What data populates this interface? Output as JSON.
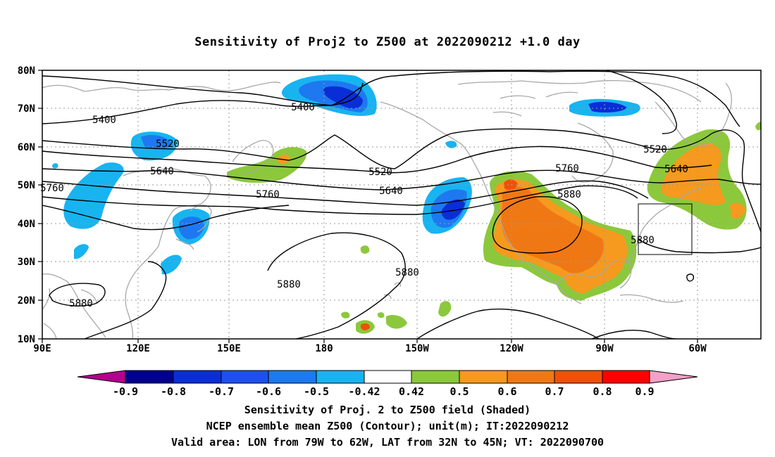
{
  "title": "Sensitivity of Proj2 to Z500 at 2022090212 +1.0 day",
  "map": {
    "lat_ticks": [
      "80N",
      "70N",
      "60N",
      "50N",
      "40N",
      "30N",
      "20N",
      "10N"
    ],
    "lon_ticks": [
      "90E",
      "120E",
      "150E",
      "180",
      "150W",
      "120W",
      "90W",
      "60W"
    ],
    "contour_labels": [
      "5400",
      "5400",
      "5520",
      "5520",
      "5520",
      "5640",
      "5640",
      "5640",
      "5760",
      "5760",
      "5760",
      "5880",
      "5880",
      "5880",
      "5880",
      "5880"
    ],
    "colors": {
      "strong_negative": "#0a2ed6",
      "negative": "#1e78f0",
      "weak_negative": "#18b4f0",
      "weak_positive": "#8cc83c",
      "positive": "#f59a1e",
      "strong_positive": "#f06414",
      "coastline": "#a8a8a8",
      "contour": "#000000"
    }
  },
  "colorbar": {
    "labels": [
      "-0.9",
      "-0.8",
      "-0.7",
      "-0.6",
      "-0.5",
      "-0.42",
      "0.42",
      "0.5",
      "0.6",
      "0.7",
      "0.8",
      "0.9"
    ],
    "colors": [
      "#b4008c",
      "#00008c",
      "#0a2ed6",
      "#1e50f0",
      "#1e78f0",
      "#18b4f0",
      "#ffffff",
      "#8cc83c",
      "#f59a1e",
      "#f07814",
      "#f0500a",
      "#ff0000",
      "#f5a0c8"
    ]
  },
  "captions": {
    "line1": "Sensitivity of Proj. 2 to Z500 field (Shaded)",
    "line2": "NCEP ensemble mean Z500 (Contour); unit(m); IT:2022090212",
    "line3": "Valid area: LON from 79W to 62W, LAT from 32N to 45N; VT: 2022090700"
  }
}
